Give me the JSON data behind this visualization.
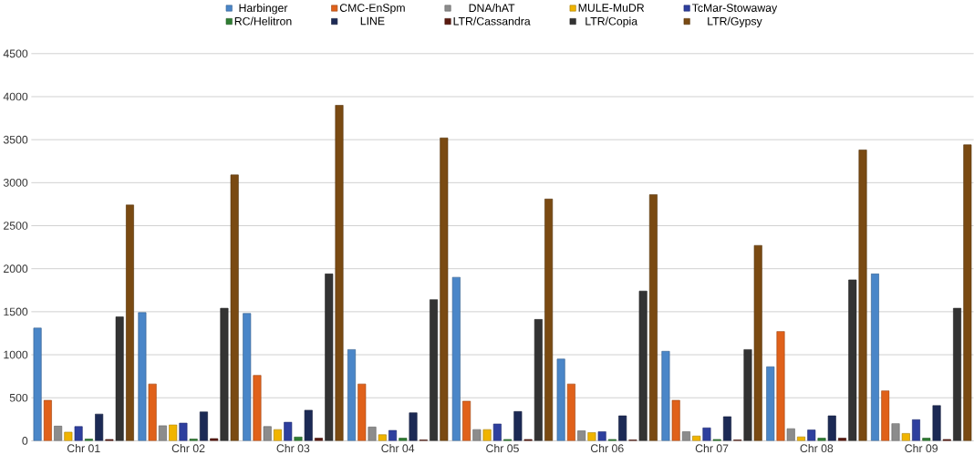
{
  "chart_data": {
    "type": "bar",
    "categories": [
      "Chr 01",
      "Chr 02",
      "Chr 03",
      "Chr 04",
      "Chr 05",
      "Chr 06",
      "Chr 07",
      "Chr 08",
      "Chr 09"
    ],
    "series": [
      {
        "name": "Harbinger",
        "color": "#4a86c8",
        "values": [
          1310,
          1490,
          1480,
          1060,
          1900,
          950,
          1040,
          860,
          1940
        ]
      },
      {
        "name": "CMC-EnSpm",
        "color": "#e0611a",
        "values": [
          470,
          660,
          760,
          660,
          460,
          660,
          470,
          1270,
          580
        ]
      },
      {
        "name": "DNA/hAT",
        "color": "#8c8c8c",
        "values": [
          170,
          175,
          165,
          160,
          130,
          115,
          105,
          140,
          200
        ]
      },
      {
        "name": "MULE-MuDR",
        "color": "#f0b400",
        "values": [
          100,
          185,
          130,
          70,
          130,
          95,
          55,
          45,
          85
        ]
      },
      {
        "name": "TcMar-Stowaway",
        "color": "#2e3f9e",
        "values": [
          165,
          205,
          215,
          120,
          195,
          105,
          150,
          125,
          245
        ]
      },
      {
        "name": "RC/Helitron",
        "color": "#2f7d32",
        "values": [
          20,
          20,
          45,
          30,
          15,
          15,
          15,
          30,
          30
        ]
      },
      {
        "name": "LINE",
        "color": "#1c2a55",
        "values": [
          310,
          335,
          355,
          325,
          340,
          290,
          280,
          290,
          410
        ]
      },
      {
        "name": "LTR/Cassandra",
        "color": "#5a1a10",
        "values": [
          15,
          25,
          30,
          10,
          15,
          10,
          10,
          30,
          15
        ]
      },
      {
        "name": "LTR/Copia",
        "color": "#333333",
        "values": [
          1440,
          1540,
          1940,
          1640,
          1410,
          1740,
          1060,
          1870,
          1540
        ]
      },
      {
        "name": "LTR/Gypsy",
        "color": "#7a4a12",
        "values": [
          2740,
          3090,
          3900,
          3520,
          2810,
          2860,
          2270,
          3380,
          3440
        ]
      }
    ],
    "ylim": [
      0,
      4500
    ],
    "yticks": [
      0,
      500,
      1000,
      1500,
      2000,
      2500,
      3000,
      3500,
      4000,
      4500
    ],
    "grid": "y",
    "legend": "top"
  }
}
